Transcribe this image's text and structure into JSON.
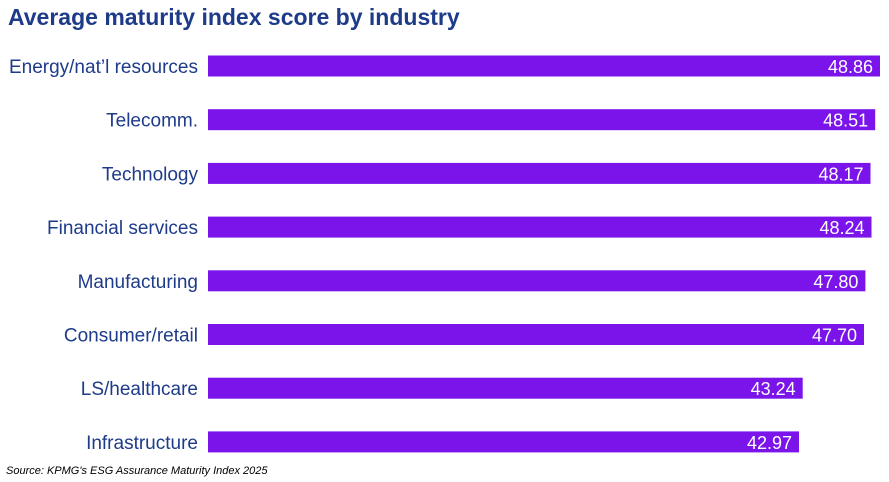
{
  "chart_data": {
    "type": "bar",
    "orientation": "horizontal",
    "title": "Average maturity index score by industry",
    "categories": [
      "Energy/nat’l resources",
      "Telecomm.",
      "Technology",
      "Financial services",
      "Manufacturing",
      "Consumer/retail",
      "LS/healthcare",
      "Infrastructure"
    ],
    "values": [
      48.86,
      48.51,
      48.17,
      48.24,
      47.8,
      47.7,
      43.24,
      42.97
    ],
    "value_labels": [
      "48.86",
      "48.51",
      "48.17",
      "48.24",
      "47.80",
      "47.70",
      "43.24",
      "42.97"
    ],
    "bar_color": "#7a14ea",
    "value_label_color": "#ffffff",
    "category_label_color": "#1e3b8a",
    "xlim": [
      0,
      48.86
    ],
    "grid": false,
    "legend": "none",
    "source": "Source: KPMG's ESG Assurance Maturity Index 2025"
  }
}
